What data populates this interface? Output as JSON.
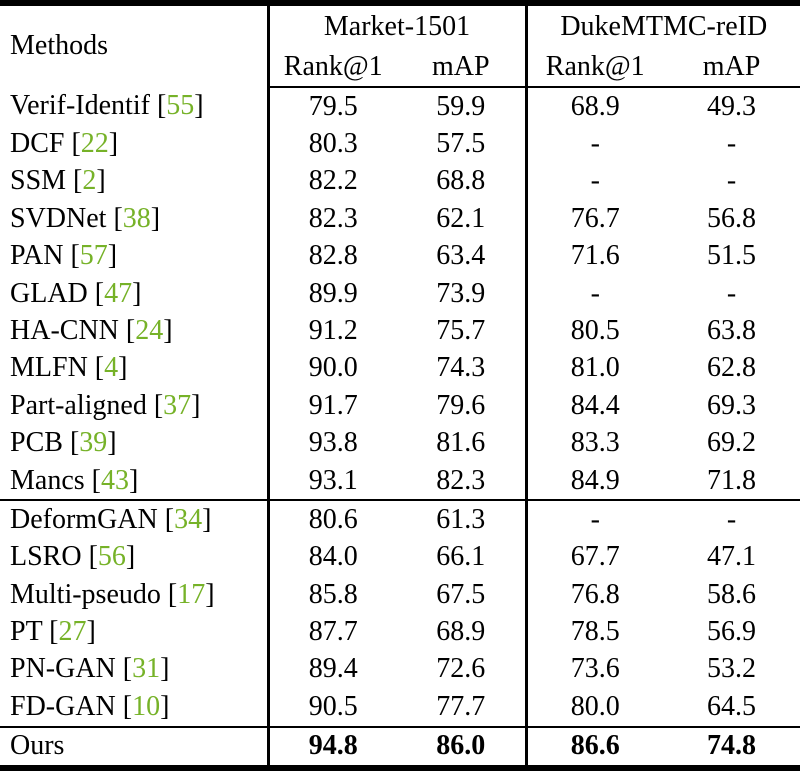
{
  "table": {
    "methods_label": "Methods",
    "groups": [
      {
        "label": "Market-1501",
        "cols": [
          "Rank@1",
          "mAP"
        ]
      },
      {
        "label": "DukeMTMC-reID",
        "cols": [
          "Rank@1",
          "mAP"
        ]
      }
    ],
    "colors": {
      "citation_green": "#76b228",
      "text": "#000000",
      "border": "#000000",
      "background": "#ffffff"
    },
    "sections": [
      {
        "rows": [
          {
            "method": "Verif-Identif",
            "cite": "55",
            "values": [
              "79.5",
              "59.9",
              "68.9",
              "49.3"
            ]
          },
          {
            "method": "DCF",
            "cite": "22",
            "values": [
              "80.3",
              "57.5",
              "-",
              "-"
            ]
          },
          {
            "method": "SSM",
            "cite": "2",
            "values": [
              "82.2",
              "68.8",
              "-",
              "-"
            ]
          },
          {
            "method": "SVDNet",
            "cite": "38",
            "values": [
              "82.3",
              "62.1",
              "76.7",
              "56.8"
            ]
          },
          {
            "method": "PAN",
            "cite": "57",
            "values": [
              "82.8",
              "63.4",
              "71.6",
              "51.5"
            ]
          },
          {
            "method": "GLAD",
            "cite": "47",
            "values": [
              "89.9",
              "73.9",
              "-",
              "-"
            ]
          },
          {
            "method": "HA-CNN",
            "cite": "24",
            "values": [
              "91.2",
              "75.7",
              "80.5",
              "63.8"
            ]
          },
          {
            "method": "MLFN",
            "cite": "4",
            "values": [
              "90.0",
              "74.3",
              "81.0",
              "62.8"
            ]
          },
          {
            "method": "Part-aligned",
            "cite": "37",
            "values": [
              "91.7",
              "79.6",
              "84.4",
              "69.3"
            ]
          },
          {
            "method": "PCB",
            "cite": "39",
            "values": [
              "93.8",
              "81.6",
              "83.3",
              "69.2"
            ]
          },
          {
            "method": "Mancs",
            "cite": "43",
            "values": [
              "93.1",
              "82.3",
              "84.9",
              "71.8"
            ]
          }
        ]
      },
      {
        "rows": [
          {
            "method": "DeformGAN",
            "cite": "34",
            "values": [
              "80.6",
              "61.3",
              "-",
              "-"
            ]
          },
          {
            "method": "LSRO",
            "cite": "56",
            "values": [
              "84.0",
              "66.1",
              "67.7",
              "47.1"
            ]
          },
          {
            "method": "Multi-pseudo",
            "cite": "17",
            "values": [
              "85.8",
              "67.5",
              "76.8",
              "58.6"
            ]
          },
          {
            "method": "PT",
            "cite": "27",
            "values": [
              "87.7",
              "68.9",
              "78.5",
              "56.9"
            ]
          },
          {
            "method": "PN-GAN",
            "cite": "31",
            "values": [
              "89.4",
              "72.6",
              "73.6",
              "53.2"
            ]
          },
          {
            "method": "FD-GAN",
            "cite": "10",
            "values": [
              "90.5",
              "77.7",
              "80.0",
              "64.5"
            ]
          }
        ]
      },
      {
        "rows": [
          {
            "method": "Ours",
            "cite": null,
            "values": [
              "94.8",
              "86.0",
              "86.6",
              "74.8"
            ],
            "bold_values": true
          }
        ]
      }
    ]
  }
}
